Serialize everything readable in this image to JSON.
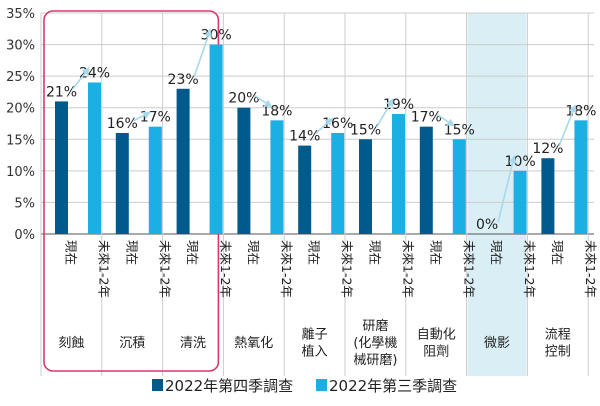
{
  "chart_data": {
    "type": "bar",
    "ylim": [
      0,
      35
    ],
    "yticks": [
      "0%",
      "5%",
      "10%",
      "15%",
      "20%",
      "25%",
      "30%",
      "35%"
    ],
    "grid": true,
    "legend_position": "bottom",
    "bar_time_labels": [
      "現在",
      "未來1-2年"
    ],
    "categories": [
      "刻蝕",
      "沉積",
      "清洗",
      "熱氧化",
      "離子植入",
      "研磨(化學機械研磨)",
      "自動化阻劑",
      "微影",
      "流程控制"
    ],
    "category_label_lines": [
      [
        "刻蝕"
      ],
      [
        "沉積"
      ],
      [
        "清洗"
      ],
      [
        "熱氧化"
      ],
      [
        "離子",
        "植入"
      ],
      [
        "研磨",
        "(化學機",
        "械研磨)"
      ],
      [
        "自動化",
        "阻劑"
      ],
      [
        "微影"
      ],
      [
        "流程",
        "控制"
      ]
    ],
    "series": [
      {
        "name": "2022年第四季調查",
        "color": "#005a8c",
        "values": [
          21,
          16,
          23,
          20,
          14,
          15,
          17,
          0,
          12
        ]
      },
      {
        "name": "2022年第三季調查",
        "color": "#1ab0e3",
        "values": [
          24,
          17,
          30,
          18,
          16,
          19,
          15,
          10,
          18
        ]
      }
    ],
    "highlight_groups": [
      0,
      1,
      2
    ],
    "shaded_groups": [
      7
    ],
    "colors": {
      "highlight_border": "#d63a6a",
      "shade": "#d9eef5",
      "arrow": "#a8d8ea",
      "axis": "#555555",
      "grid": "#cccccc"
    }
  }
}
